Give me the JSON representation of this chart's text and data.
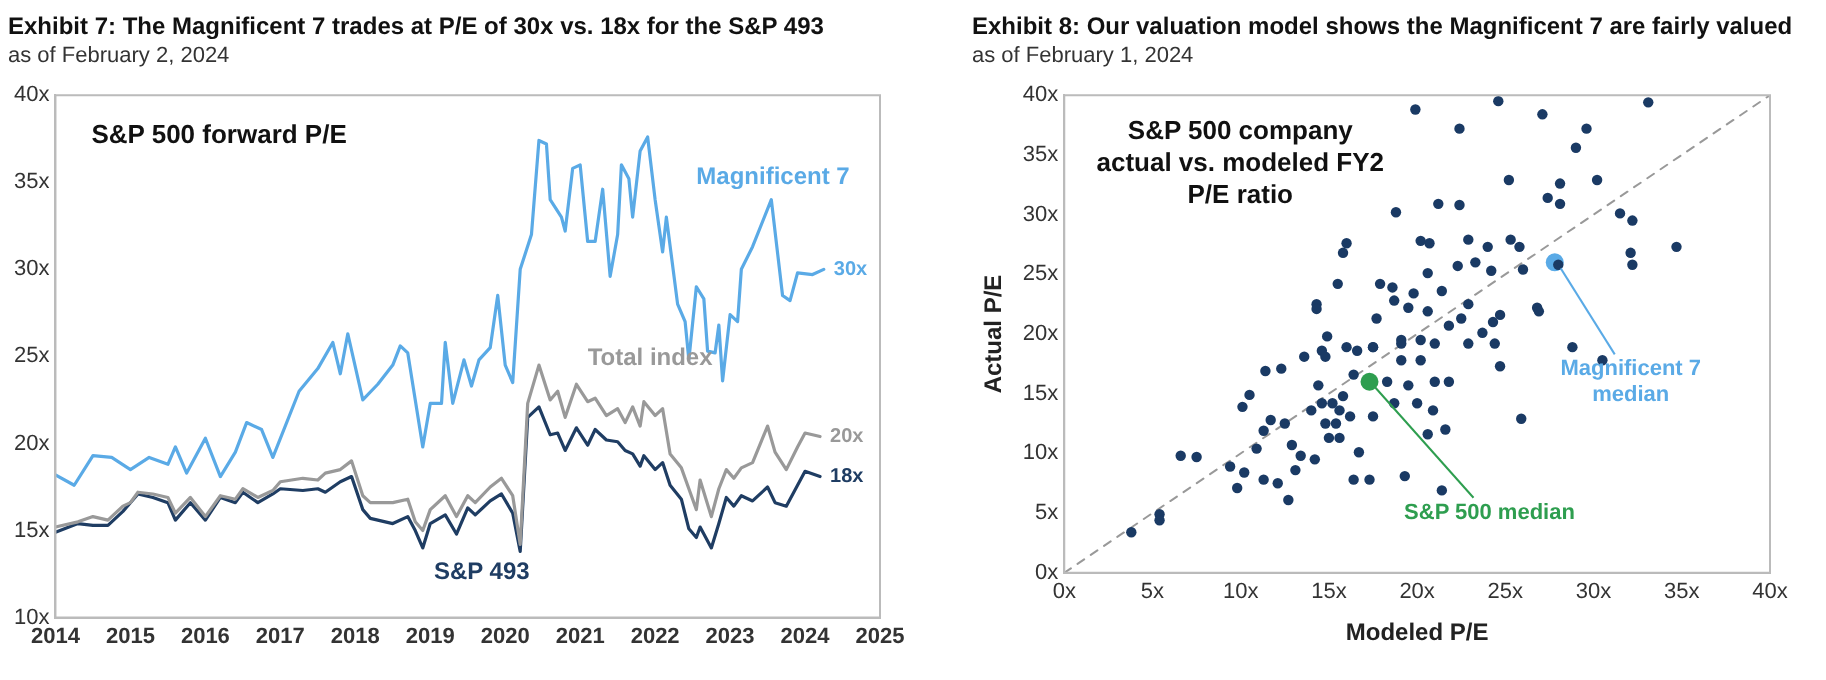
{
  "chart_data": [
    {
      "type": "line",
      "title": "Exhibit 7: The Magnificent 7 trades at P/E of 30x vs. 18x for the S&P 493",
      "subtitle": "as of February 2, 2024",
      "annotations": [
        "S&P 500 forward P/E"
      ],
      "xlim": [
        2014,
        2025
      ],
      "xticks": [
        2014,
        2015,
        2016,
        2017,
        2018,
        2019,
        2020,
        2021,
        2022,
        2023,
        2024,
        2025
      ],
      "ylim": [
        10,
        40
      ],
      "yticks": [
        {
          "value": 10,
          "label": "10x"
        },
        {
          "value": 15,
          "label": "15x"
        },
        {
          "value": 20,
          "label": "20x"
        },
        {
          "value": 25,
          "label": "25x"
        },
        {
          "value": 30,
          "label": "30x"
        },
        {
          "value": 35,
          "label": "35x"
        },
        {
          "value": 40,
          "label": "40x"
        }
      ],
      "grid": false,
      "marker": "none",
      "series": [
        {
          "name": "Magnificent 7",
          "color": "#5aaae6",
          "x": [
            2014.0,
            2014.25,
            2014.5,
            2014.75,
            2015.0,
            2015.25,
            2015.5,
            2015.6,
            2015.75,
            2016.0,
            2016.2,
            2016.4,
            2016.55,
            2016.75,
            2016.9,
            2017.25,
            2017.5,
            2017.7,
            2017.8,
            2017.9,
            2018.1,
            2018.3,
            2018.5,
            2018.6,
            2018.7,
            2018.9,
            2019.0,
            2019.15,
            2019.2,
            2019.3,
            2019.45,
            2019.55,
            2019.65,
            2019.8,
            2019.9,
            2020.0,
            2020.1,
            2020.2,
            2020.35,
            2020.45,
            2020.55,
            2020.6,
            2020.75,
            2020.8,
            2020.9,
            2021.0,
            2021.1,
            2021.2,
            2021.3,
            2021.4,
            2021.5,
            2021.55,
            2021.65,
            2021.7,
            2021.8,
            2021.9,
            2022.0,
            2022.1,
            2022.15,
            2022.3,
            2022.4,
            2022.45,
            2022.55,
            2022.65,
            2022.7,
            2022.8,
            2022.85,
            2022.9,
            2023.0,
            2023.1,
            2023.15,
            2023.3,
            2023.55,
            2023.7,
            2023.8,
            2023.9,
            2024.1,
            2024.25
          ],
          "values": [
            18.2,
            17.6,
            19.3,
            19.2,
            18.5,
            19.2,
            18.8,
            19.8,
            18.3,
            20.3,
            18.1,
            19.5,
            21.2,
            20.8,
            19.2,
            23,
            24.3,
            25.8,
            24,
            26.3,
            22.5,
            23.4,
            24.5,
            25.6,
            25.2,
            19.8,
            22.3,
            22.3,
            25.8,
            22.3,
            24.8,
            23.3,
            24.8,
            25.5,
            28.5,
            24.5,
            23.5,
            30,
            32,
            37.4,
            37.2,
            34,
            33,
            32.2,
            35.8,
            36,
            31.6,
            31.6,
            34.6,
            29.6,
            32,
            36,
            35.2,
            33,
            36.8,
            37.6,
            34,
            31,
            33,
            28,
            27,
            24.8,
            29,
            28.3,
            25.3,
            25.2,
            26.8,
            23.6,
            27.4,
            27,
            30,
            31.3,
            34,
            28.5,
            28.2,
            29.8,
            29.7,
            30
          ],
          "value_labels": [
            null,
            null,
            null,
            null,
            null,
            null,
            null,
            null,
            null,
            null,
            null,
            null,
            null,
            null,
            null,
            null,
            null,
            null,
            null,
            null,
            null,
            null,
            null,
            null,
            null,
            null,
            null,
            null,
            null,
            null,
            null,
            null,
            null,
            null,
            null,
            null,
            null,
            null,
            null,
            null,
            null,
            null,
            null,
            null,
            null,
            null,
            null,
            null,
            null,
            null,
            null,
            null,
            null,
            null,
            null,
            null,
            null,
            null,
            null,
            null,
            null,
            null,
            null,
            null,
            null,
            null,
            null,
            null,
            null,
            null,
            null,
            null,
            null,
            null,
            null,
            null,
            null,
            "30x"
          ]
        },
        {
          "name": "Total index",
          "color": "#999999",
          "x": [
            2014.0,
            2014.3,
            2014.5,
            2014.7,
            2014.9,
            2015.0,
            2015.1,
            2015.3,
            2015.5,
            2015.6,
            2015.8,
            2016.0,
            2016.2,
            2016.4,
            2016.5,
            2016.7,
            2016.9,
            2017.0,
            2017.3,
            2017.5,
            2017.6,
            2017.8,
            2017.95,
            2018.1,
            2018.2,
            2018.5,
            2018.7,
            2018.8,
            2018.9,
            2019.0,
            2019.2,
            2019.35,
            2019.5,
            2019.6,
            2019.8,
            2019.95,
            2020.1,
            2020.2,
            2020.3,
            2020.45,
            2020.6,
            2020.7,
            2020.8,
            2020.95,
            2021.1,
            2021.2,
            2021.35,
            2021.5,
            2021.6,
            2021.7,
            2021.8,
            2021.85,
            2022.0,
            2022.1,
            2022.2,
            2022.35,
            2022.45,
            2022.55,
            2022.6,
            2022.75,
            2022.85,
            2022.95,
            2023.05,
            2023.15,
            2023.3,
            2023.5,
            2023.6,
            2023.75,
            2023.9,
            2024.0,
            2024.2
          ],
          "values": [
            15.2,
            15.5,
            15.8,
            15.6,
            16.4,
            16.6,
            17.2,
            17.1,
            16.9,
            16.0,
            16.9,
            15.8,
            17.0,
            16.8,
            17.4,
            16.9,
            17.3,
            17.8,
            18.0,
            17.9,
            18.3,
            18.5,
            19.0,
            17.0,
            16.6,
            16.6,
            16.8,
            15.5,
            15.0,
            16.2,
            17.0,
            15.8,
            17.0,
            16.6,
            17.5,
            18.0,
            17.0,
            14.2,
            22.3,
            24.5,
            22.5,
            23.0,
            21.5,
            23.4,
            22.4,
            22.6,
            21.6,
            22.0,
            21.2,
            22.1,
            21.0,
            22.4,
            21.6,
            22.0,
            19.4,
            18.6,
            17.4,
            16.2,
            17.9,
            15.8,
            17.4,
            18.5,
            18.0,
            18.6,
            18.9,
            21.0,
            19.5,
            18.5,
            19.8,
            20.6,
            20.4
          ],
          "value_labels": [
            null,
            null,
            null,
            null,
            null,
            null,
            null,
            null,
            null,
            null,
            null,
            null,
            null,
            null,
            null,
            null,
            null,
            null,
            null,
            null,
            null,
            null,
            null,
            null,
            null,
            null,
            null,
            null,
            null,
            null,
            null,
            null,
            null,
            null,
            null,
            null,
            null,
            null,
            null,
            null,
            null,
            null,
            null,
            null,
            null,
            null,
            null,
            null,
            null,
            null,
            null,
            null,
            null,
            null,
            null,
            null,
            null,
            null,
            null,
            null,
            null,
            null,
            null,
            null,
            null,
            null,
            null,
            null,
            null,
            null,
            "20x"
          ]
        },
        {
          "name": "S&P 493",
          "color": "#1f3d63",
          "x": [
            2014.0,
            2014.3,
            2014.5,
            2014.7,
            2014.9,
            2015.0,
            2015.1,
            2015.3,
            2015.5,
            2015.6,
            2015.8,
            2016.0,
            2016.2,
            2016.4,
            2016.5,
            2016.7,
            2016.9,
            2017.0,
            2017.3,
            2017.5,
            2017.6,
            2017.8,
            2017.95,
            2018.1,
            2018.2,
            2018.5,
            2018.7,
            2018.8,
            2018.9,
            2019.0,
            2019.2,
            2019.35,
            2019.5,
            2019.6,
            2019.8,
            2019.95,
            2020.1,
            2020.2,
            2020.3,
            2020.45,
            2020.6,
            2020.7,
            2020.8,
            2020.95,
            2021.1,
            2021.2,
            2021.35,
            2021.5,
            2021.6,
            2021.7,
            2021.8,
            2021.85,
            2022.0,
            2022.1,
            2022.2,
            2022.35,
            2022.45,
            2022.55,
            2022.6,
            2022.75,
            2022.85,
            2022.95,
            2023.05,
            2023.15,
            2023.3,
            2023.5,
            2023.6,
            2023.75,
            2023.9,
            2024.0,
            2024.2
          ],
          "values": [
            14.9,
            15.4,
            15.3,
            15.3,
            16.1,
            16.6,
            17.1,
            16.9,
            16.6,
            15.6,
            16.6,
            15.6,
            16.9,
            16.6,
            17.2,
            16.6,
            17.1,
            17.4,
            17.3,
            17.4,
            17.2,
            17.8,
            18.1,
            16.2,
            15.7,
            15.4,
            15.8,
            15.0,
            14.0,
            15.4,
            15.9,
            14.8,
            16.3,
            15.9,
            16.7,
            17.1,
            16.0,
            13.8,
            21.5,
            22.1,
            20.5,
            20.6,
            19.6,
            20.9,
            19.9,
            20.8,
            20.2,
            20.1,
            19.6,
            19.4,
            18.7,
            19.3,
            18.5,
            18.9,
            17.6,
            16.8,
            15.1,
            14.6,
            15.2,
            14.0,
            15.4,
            16.9,
            16.4,
            17.0,
            16.7,
            17.5,
            16.6,
            16.4,
            17.6,
            18.4,
            18.1
          ],
          "value_labels": [
            null,
            null,
            null,
            null,
            null,
            null,
            null,
            null,
            null,
            null,
            null,
            null,
            null,
            null,
            null,
            null,
            null,
            null,
            null,
            null,
            null,
            null,
            null,
            null,
            null,
            null,
            null,
            null,
            null,
            null,
            null,
            null,
            null,
            null,
            null,
            null,
            null,
            null,
            null,
            null,
            null,
            null,
            null,
            null,
            null,
            null,
            null,
            null,
            null,
            null,
            null,
            null,
            null,
            null,
            null,
            null,
            null,
            null,
            null,
            null,
            null,
            null,
            null,
            null,
            null,
            null,
            null,
            null,
            null,
            null,
            "18x"
          ]
        }
      ]
    },
    {
      "type": "scatter",
      "title": "Exhibit 8: Our valuation model shows the Magnificent 7 are fairly valued",
      "subtitle": "as of February 1, 2024",
      "xlabel": "Modeled P/E",
      "ylabel": "Actual P/E",
      "annotations": [
        "S&P 500 company actual vs. modeled FY2 P/E ratio"
      ],
      "xlim": [
        0,
        40
      ],
      "xticks": [
        {
          "value": 0,
          "label": "0x"
        },
        {
          "value": 5,
          "label": "5x"
        },
        {
          "value": 10,
          "label": "10x"
        },
        {
          "value": 15,
          "label": "15x"
        },
        {
          "value": 20,
          "label": "20x"
        },
        {
          "value": 25,
          "label": "25x"
        },
        {
          "value": 30,
          "label": "30x"
        },
        {
          "value": 35,
          "label": "35x"
        },
        {
          "value": 40,
          "label": "40x"
        }
      ],
      "ylim": [
        0,
        40
      ],
      "yticks": [
        {
          "value": 0,
          "label": "0x"
        },
        {
          "value": 5,
          "label": "5x"
        },
        {
          "value": 10,
          "label": "10x"
        },
        {
          "value": 15,
          "label": "15x"
        },
        {
          "value": 20,
          "label": "20x"
        },
        {
          "value": 25,
          "label": "25x"
        },
        {
          "value": 30,
          "label": "30x"
        },
        {
          "value": 35,
          "label": "35x"
        },
        {
          "value": 40,
          "label": "40x"
        }
      ],
      "grid": false,
      "marker": "circle",
      "series": [
        {
          "type": "line",
          "color": "#999999",
          "line_style": "dashed",
          "marker": "none",
          "x": [
            0,
            40
          ],
          "values": [
            0,
            40
          ]
        },
        {
          "color": "#1a3a64",
          "x": [
            19.9,
            24.6,
            27.1,
            33.1,
            22.4,
            29.6,
            29.0,
            25.2,
            28.1,
            30.2,
            27.4,
            28.1,
            18.8,
            21.2,
            22.4,
            31.5,
            32.2,
            16.0,
            15.8,
            20.2,
            20.7,
            22.9,
            24.0,
            25.3,
            25.8,
            32.1,
            34.7,
            32.2,
            28.0,
            15.5,
            17.9,
            18.6,
            20.6,
            22.3,
            23.3,
            24.2,
            26.0,
            14.3,
            14.3,
            14.9,
            14.6,
            16.6,
            17.5,
            17.7,
            18.7,
            19.5,
            19.8,
            20.6,
            21.4,
            21.8,
            22.5,
            22.9,
            23.7,
            24.3,
            24.7,
            19.1,
            20.2,
            21.0,
            26.8,
            26.9,
            28.8,
            30.5,
            11.4,
            12.3,
            10.5,
            10.1,
            6.6,
            7.5,
            9.4,
            9.8,
            10.2,
            11.3,
            12.1,
            12.7,
            5.4,
            5.4,
            3.8,
            10.9,
            11.3,
            11.7,
            12.5,
            12.9,
            13.4,
            13.1,
            14.2,
            14.0,
            14.4,
            14.8,
            15.2,
            15.6,
            15.8,
            16.2,
            16.4,
            16.7,
            16.4,
            17.3,
            17.5,
            18.3,
            18.7,
            19.1,
            19.3,
            19.5,
            20.0,
            20.6,
            20.9,
            21.0,
            21.4,
            21.6,
            21.8,
            22.9,
            24.4,
            24.7,
            25.9,
            16.0,
            17.5,
            13.6,
            14.8,
            19.1,
            20.2,
            15.0,
            15.4,
            15.6,
            14.6
          ],
          "values": [
            38.8,
            39.5,
            38.4,
            39.4,
            37.2,
            37.2,
            35.6,
            32.9,
            32.6,
            32.9,
            31.4,
            30.9,
            30.2,
            30.9,
            30.8,
            30.1,
            29.5,
            27.6,
            26.8,
            27.8,
            27.6,
            27.9,
            27.3,
            27.9,
            27.3,
            26.8,
            27.3,
            25.8,
            25.8,
            24.2,
            24.2,
            23.9,
            25.1,
            25.7,
            26.0,
            25.3,
            25.4,
            22.5,
            22.1,
            19.8,
            18.6,
            18.6,
            18.9,
            21.3,
            22.8,
            22.2,
            23.4,
            21.9,
            23.6,
            20.7,
            21.3,
            22.5,
            20.1,
            21.0,
            21.6,
            19.5,
            19.5,
            19.2,
            22.2,
            21.9,
            18.9,
            17.8,
            16.9,
            17.1,
            14.9,
            13.9,
            9.8,
            9.7,
            8.9,
            7.1,
            8.4,
            7.8,
            7.5,
            6.1,
            4.9,
            4.4,
            3.4,
            10.4,
            11.9,
            12.8,
            12.5,
            10.7,
            9.8,
            8.6,
            9.5,
            13.6,
            15.7,
            12.5,
            14.2,
            11.3,
            14.8,
            13.1,
            16.6,
            10.1,
            7.8,
            7.8,
            13.1,
            16.0,
            14.2,
            17.8,
            8.1,
            15.7,
            14.2,
            11.6,
            13.6,
            16.0,
            6.9,
            12.0,
            16.0,
            19.2,
            19.2,
            17.3,
            12.9,
            18.9,
            18.9,
            18.1,
            18.1,
            19.2,
            17.8,
            11.3,
            12.5,
            13.6,
            14.2
          ]
        },
        {
          "name": "Magnificent 7 median",
          "color": "#5aaae6",
          "x": [
            27.8
          ],
          "values": [
            26.0
          ]
        },
        {
          "name": "S&P 500 median",
          "color": "#2e9e4f",
          "x": [
            17.3
          ],
          "values": [
            16.0
          ]
        }
      ]
    }
  ]
}
